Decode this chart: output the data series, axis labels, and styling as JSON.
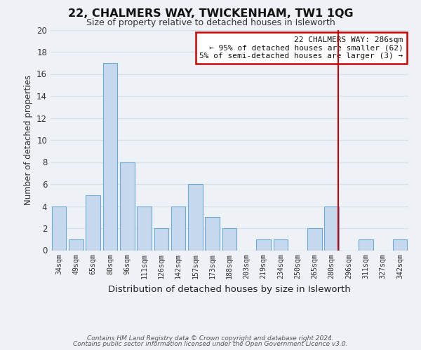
{
  "title": "22, CHALMERS WAY, TWICKENHAM, TW1 1QG",
  "subtitle": "Size of property relative to detached houses in Isleworth",
  "xlabel": "Distribution of detached houses by size in Isleworth",
  "ylabel": "Number of detached properties",
  "bins": [
    "34sqm",
    "49sqm",
    "65sqm",
    "80sqm",
    "96sqm",
    "111sqm",
    "126sqm",
    "142sqm",
    "157sqm",
    "173sqm",
    "188sqm",
    "203sqm",
    "219sqm",
    "234sqm",
    "250sqm",
    "265sqm",
    "280sqm",
    "296sqm",
    "311sqm",
    "327sqm",
    "342sqm"
  ],
  "values": [
    4,
    1,
    5,
    17,
    8,
    4,
    2,
    4,
    6,
    3,
    2,
    0,
    1,
    1,
    0,
    2,
    4,
    0,
    1,
    0,
    1
  ],
  "bar_color": "#c5d8ed",
  "bar_edge_color": "#6aaad4",
  "ylim": [
    0,
    20
  ],
  "yticks": [
    0,
    2,
    4,
    6,
    8,
    10,
    12,
    14,
    16,
    18,
    20
  ],
  "vline_color": "#cc0000",
  "annotation_title": "22 CHALMERS WAY: 286sqm",
  "annotation_line1": "← 95% of detached houses are smaller (62)",
  "annotation_line2": "5% of semi-detached houses are larger (3) →",
  "annotation_box_color": "#ffffff",
  "annotation_box_edge_color": "#cc0000",
  "footer1": "Contains HM Land Registry data © Crown copyright and database right 2024.",
  "footer2": "Contains public sector information licensed under the Open Government Licence v3.0.",
  "background_color": "#eef2f7",
  "grid_color": "#d8e0ea"
}
